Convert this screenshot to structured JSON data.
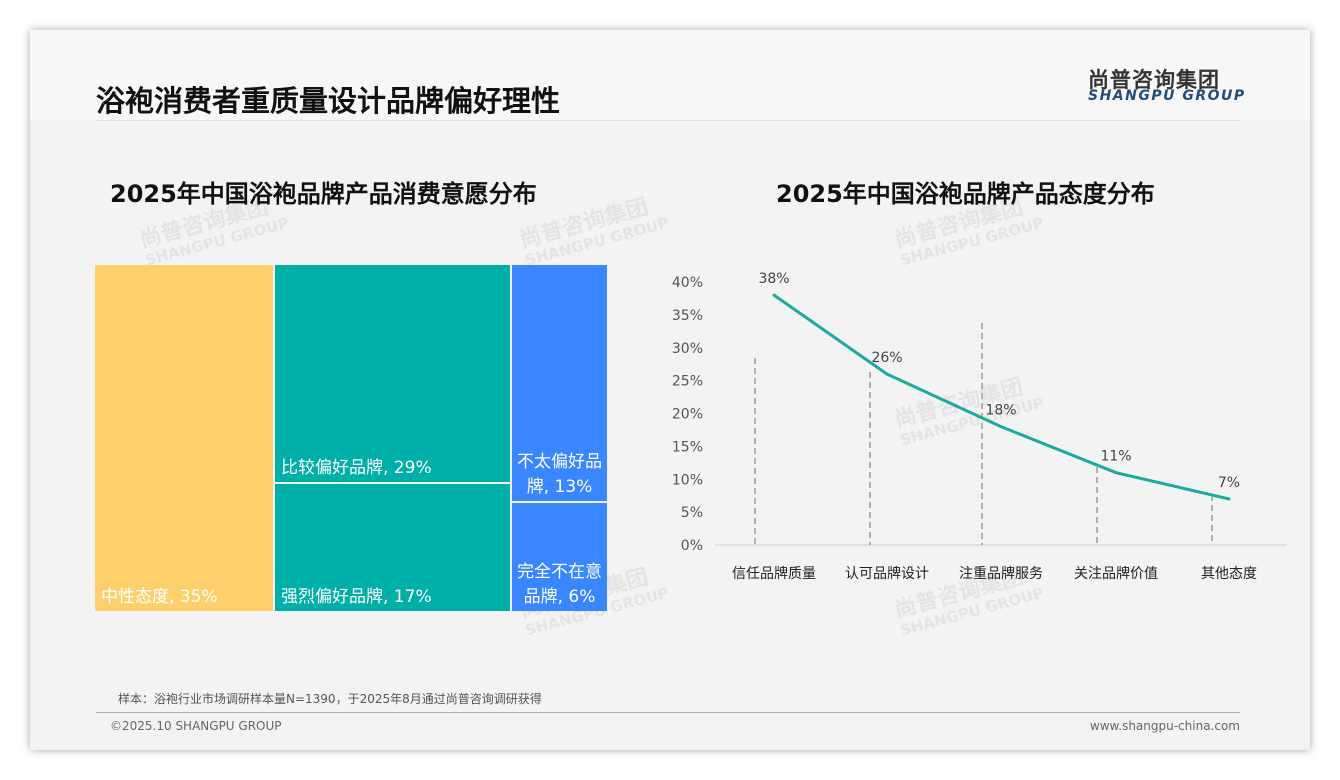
{
  "header": {
    "title": "浴袍消费者重质量设计品牌偏好理性",
    "logo_cn": "尚普咨询集团",
    "logo_en": "SHANGPU GROUP"
  },
  "watermark": {
    "cn": "尚普咨询集团",
    "en": "SHANGPU GROUP"
  },
  "chart_data": [
    {
      "type": "treemap",
      "title": "2025年中国浴袍品牌产品消费意愿分布",
      "items": [
        {
          "label": "中性态度, 35%",
          "name": "中性态度",
          "value": 35,
          "color": "#fdd06b"
        },
        {
          "label": "比较偏好品牌, 29%",
          "name": "比较偏好品牌",
          "value": 29,
          "color": "#00b0a8"
        },
        {
          "label": "强烈偏好品牌, 17%",
          "name": "强烈偏好品牌",
          "value": 17,
          "color": "#00b0a8"
        },
        {
          "label": "不太偏好品牌, 13%",
          "name": "不太偏好品牌",
          "value": 13,
          "color": "#3a86ff"
        },
        {
          "label": "完全不在意品牌, 6%",
          "name": "完全不在意品牌",
          "value": 6,
          "color": "#3a86ff"
        }
      ]
    },
    {
      "type": "line",
      "title": "2025年中国浴袍品牌产品态度分布",
      "categories": [
        "信任品牌质量",
        "认可品牌设计",
        "注重品牌服务",
        "关注品牌价值",
        "其他态度"
      ],
      "values": [
        38,
        26,
        18,
        11,
        7
      ],
      "data_labels": [
        "38%",
        "26%",
        "18%",
        "11%",
        "7%"
      ],
      "yticks": [
        "0%",
        "5%",
        "10%",
        "15%",
        "20%",
        "25%",
        "30%",
        "35%",
        "40%"
      ],
      "ylim": [
        0,
        40
      ],
      "color": "#1aaa9e"
    }
  ],
  "footer": {
    "note": "样本：浴袍行业市场调研样本量N=1390，于2025年8月通过尚普咨询调研获得",
    "copyright": "©2025.10 SHANGPU GROUP",
    "website": "www.shangpu-china.com"
  }
}
